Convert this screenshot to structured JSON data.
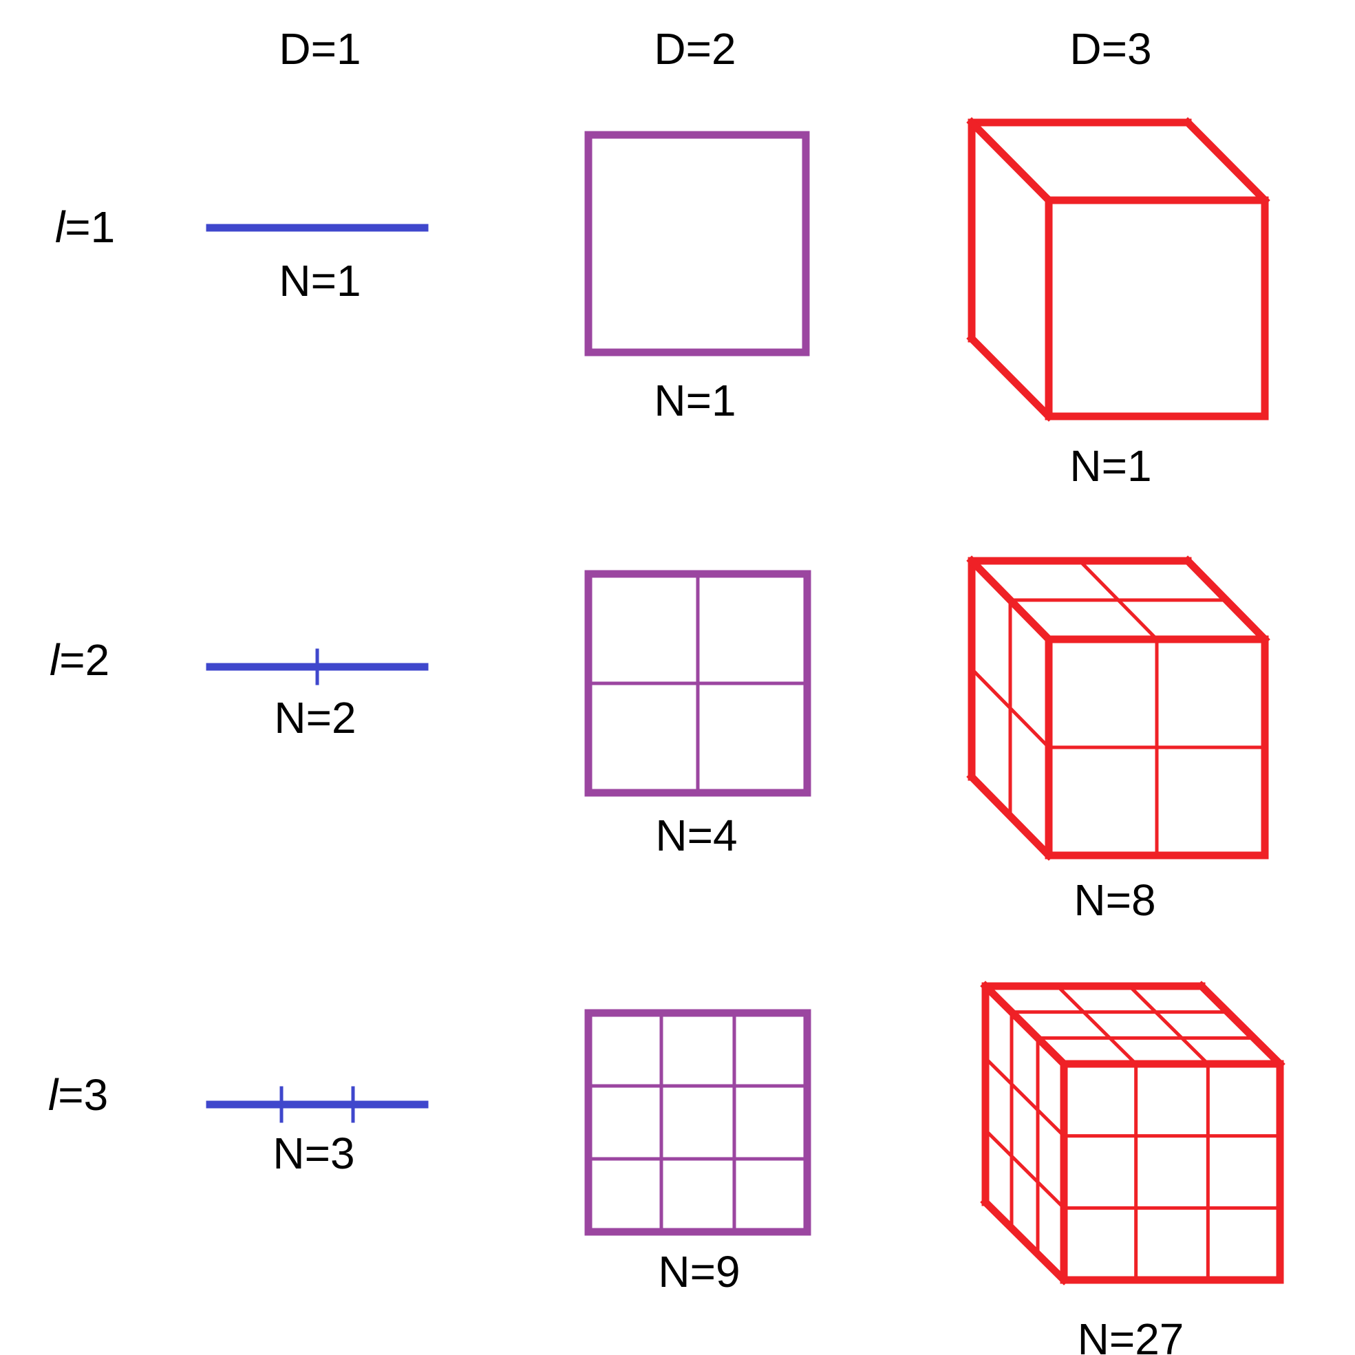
{
  "colors": {
    "line_1d": "#3f47cc",
    "square_2d": "#9b46a0",
    "cube_3d": "#ef2126"
  },
  "headers": {
    "d1": "D=1",
    "d2": "D=2",
    "d3": "D=3"
  },
  "rows": [
    {
      "l_symbol": "l",
      "l_value": "=1",
      "subdivisions": 1,
      "n_1d": "N=1",
      "n_2d": "N=1",
      "n_3d": "N=1"
    },
    {
      "l_symbol": "l",
      "l_value": "=2",
      "subdivisions": 2,
      "n_1d": "N=2",
      "n_2d": "N=4",
      "n_3d": "N=8"
    },
    {
      "l_symbol": "l",
      "l_value": "=3",
      "subdivisions": 3,
      "n_1d": "N=3",
      "n_2d": "N=9",
      "n_3d": "N=27"
    }
  ]
}
